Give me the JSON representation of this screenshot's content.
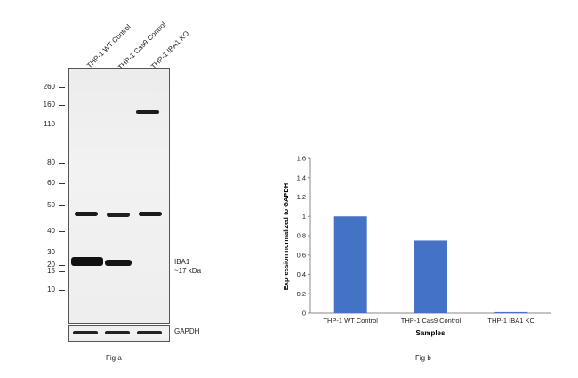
{
  "western_blot": {
    "lanes": [
      "THP-1 WT Control",
      "THP-1 Cas9 Control",
      "THP-1 IBA1 KO"
    ],
    "mw_markers": [
      "260",
      "160",
      "110",
      "80",
      "60",
      "50",
      "40",
      "30",
      "20",
      "15",
      "10"
    ],
    "target_label_line1": "IBA1",
    "target_label_line2": "~17 kDa",
    "loading_control_label": "GAPDH",
    "caption": "Fig a"
  },
  "chart_data": {
    "type": "bar",
    "categories": [
      "THP-1 WT Control",
      "THP-1 Cas9 Control",
      "THP-1 IBA1 KO"
    ],
    "values": [
      1.0,
      0.75,
      0.01
    ],
    "title": "",
    "xlabel": "Samples",
    "ylabel": "Expression normalized to GAPDH",
    "ylim": [
      0,
      1.6
    ],
    "yticks": [
      "0",
      "0.2",
      "0.4",
      "0.6",
      "0.8",
      "1",
      "1.2",
      "1.4",
      "1.6"
    ],
    "bar_color": "#4472c4",
    "grid": false,
    "caption": "Fig b"
  }
}
